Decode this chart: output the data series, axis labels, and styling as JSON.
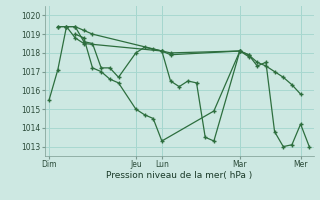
{
  "xlabel": "Pression niveau de la mer( hPa )",
  "bg_color": "#cde8e2",
  "grid_color": "#a8d8d0",
  "line_color": "#2d6e3e",
  "ylim": [
    1012.5,
    1020.5
  ],
  "yticks": [
    1013,
    1014,
    1015,
    1016,
    1017,
    1018,
    1019,
    1020
  ],
  "x_tick_pos": [
    0,
    10,
    13,
    22,
    29
  ],
  "x_tick_lab": [
    "Dim",
    "Jeu",
    "Lun",
    "Mar",
    "Mer"
  ],
  "x_vline": [
    0,
    10,
    13,
    22,
    29
  ],
  "xlim": [
    -0.5,
    30.5
  ],
  "series": [
    {
      "x": [
        0,
        1,
        2,
        3,
        4,
        5,
        6,
        7,
        8,
        10,
        11,
        12,
        13,
        14,
        15,
        16,
        17,
        18,
        19,
        22,
        23,
        24,
        25,
        26,
        27,
        28,
        29,
        30
      ],
      "y": [
        1015.5,
        1017.1,
        1019.4,
        1019.4,
        1018.6,
        1018.5,
        1017.2,
        1017.2,
        1016.7,
        1018.0,
        1018.3,
        1018.2,
        1018.1,
        1016.5,
        1016.2,
        1016.5,
        1016.4,
        1013.5,
        1013.3,
        1018.1,
        1017.9,
        1017.3,
        1017.5,
        1013.8,
        1013.0,
        1013.1,
        1014.2,
        1013.0
      ]
    },
    {
      "x": [
        1,
        2,
        3,
        4,
        5,
        13,
        14,
        22,
        23,
        24,
        25,
        26,
        27,
        28,
        29
      ],
      "y": [
        1019.4,
        1019.4,
        1019.4,
        1019.2,
        1019.0,
        1018.1,
        1018.0,
        1018.1,
        1017.9,
        1017.5,
        1017.3,
        1017.0,
        1016.7,
        1016.3,
        1015.8
      ]
    },
    {
      "x": [
        1,
        2,
        3,
        4,
        13,
        14,
        22,
        23
      ],
      "y": [
        1019.4,
        1019.4,
        1018.8,
        1018.5,
        1018.1,
        1017.9,
        1018.1,
        1017.8
      ]
    },
    {
      "x": [
        3,
        4,
        5,
        6,
        7,
        8,
        10,
        11,
        12,
        13,
        19,
        22
      ],
      "y": [
        1019.0,
        1018.8,
        1017.2,
        1017.0,
        1016.6,
        1016.4,
        1015.0,
        1014.7,
        1014.5,
        1013.3,
        1014.9,
        1018.1
      ]
    }
  ]
}
